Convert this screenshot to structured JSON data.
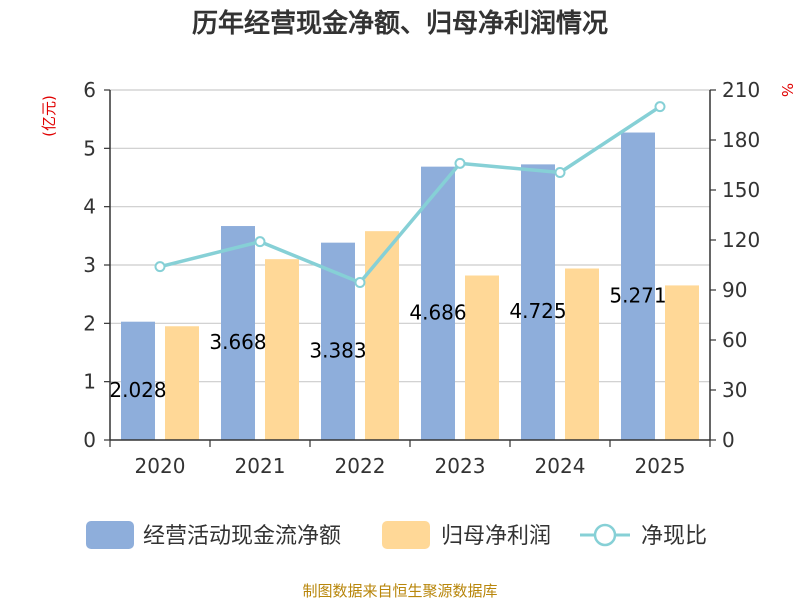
{
  "chart_data": {
    "type": "bar",
    "title": "历年经营现金净额、归母净利润情况",
    "categories": [
      "2020",
      "2021",
      "2022",
      "2023",
      "2024",
      "2025"
    ],
    "series": [
      {
        "name": "经营活动现金流净额",
        "type": "bar",
        "axis": "left",
        "color": "#8eaedb",
        "values": [
          2.028,
          3.668,
          3.383,
          4.686,
          4.725,
          5.271
        ],
        "labels": [
          "2.028",
          "3.668",
          "3.383",
          "4.686",
          "4.725",
          "5.271"
        ]
      },
      {
        "name": "归母净利润",
        "type": "bar",
        "axis": "left",
        "color": "#ffd897",
        "values": [
          1.95,
          3.1,
          3.58,
          2.82,
          2.94,
          2.65
        ]
      },
      {
        "name": "净现比",
        "type": "line",
        "axis": "right",
        "color": "#86d0d6",
        "values": [
          104,
          119,
          94.5,
          166,
          160.5,
          200
        ]
      }
    ],
    "y_left": {
      "unit": "(亿元)",
      "min": 0,
      "max": 6,
      "ticks": [
        "0",
        "1",
        "2",
        "3",
        "4",
        "5",
        "6"
      ]
    },
    "y_right": {
      "unit": "%",
      "min": 0,
      "max": 210,
      "ticks": [
        "0",
        "30",
        "60",
        "90",
        "120",
        "150",
        "180",
        "210"
      ]
    },
    "grid": true,
    "legend_position": "bottom"
  },
  "source": "制图数据来自恒生聚源数据库"
}
